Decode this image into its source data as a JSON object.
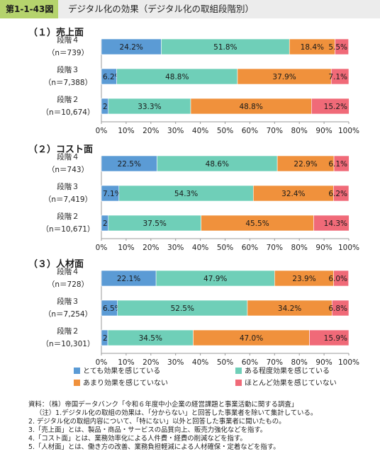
{
  "header": {
    "figure_number": "第1-1-43図",
    "title": "デジタル化の効果（デジタル化の取組段階別）"
  },
  "colors": {
    "header_accent": "#b5d36d",
    "very_effective": "#5b9bd5",
    "somewhat_effective": "#6fcfb8",
    "not_very_effective": "#f0913c",
    "not_effective": "#f06a78"
  },
  "chart_data": {
    "type": "bar",
    "orientation": "horizontal-stacked-100",
    "xlim": [
      0,
      100
    ],
    "xticks": [
      "0%",
      "10%",
      "20%",
      "30%",
      "40%",
      "50%",
      "60%",
      "70%",
      "80%",
      "90%",
      "100%"
    ],
    "legend_placement": "bottom",
    "series_names": [
      "とても効果を感じている",
      "ある程度効果を感じている",
      "あまり効果を感じていない",
      "ほとんど効果を感じていない"
    ],
    "panels": [
      {
        "title": "（１）売上面",
        "rows": [
          {
            "label": "段階４",
            "n": "（n＝739）",
            "values": [
              24.2,
              51.8,
              18.4,
              5.5
            ]
          },
          {
            "label": "段階３",
            "n": "（n＝7,388）",
            "values": [
              6.2,
              48.8,
              37.9,
              7.1
            ]
          },
          {
            "label": "段階２",
            "n": "（n＝10,674）",
            "values": [
              2.8,
              33.3,
              48.8,
              15.2
            ]
          }
        ]
      },
      {
        "title": "（２）コスト面",
        "rows": [
          {
            "label": "段階４",
            "n": "（n＝743）",
            "values": [
              22.5,
              48.6,
              22.9,
              6.1
            ]
          },
          {
            "label": "段階３",
            "n": "（n＝7,419）",
            "values": [
              7.1,
              54.3,
              32.4,
              6.2
            ]
          },
          {
            "label": "段階２",
            "n": "（n＝10,671）",
            "values": [
              2.8,
              37.5,
              45.5,
              14.3
            ]
          }
        ]
      },
      {
        "title": "（３）人材面",
        "rows": [
          {
            "label": "段階４",
            "n": "（n＝728）",
            "values": [
              22.1,
              47.9,
              23.9,
              6.0
            ]
          },
          {
            "label": "段階３",
            "n": "（n＝7,254）",
            "values": [
              6.5,
              52.5,
              34.2,
              6.8
            ]
          },
          {
            "label": "段階２",
            "n": "（n＝10,301）",
            "values": [
              2.6,
              34.5,
              47.0,
              15.9
            ]
          }
        ]
      }
    ]
  },
  "notes": {
    "source": "資料：（株）帝国データバンク「令和６年度中小企業の経営課題と事業活動に関する調査」",
    "items": [
      "（注）1.デジタル化の取組の効果は、「分からない」と回答した事業者を除いて集計している。",
      "2. デジタル化の取組内容について、「特にない」以外と回答した事業者に聞いたもの。",
      "3.「売上面」とは、製品・商品・サービスの品質向上、販売力強化などを指す。",
      "4.「コスト面」とは、業務効率化による人件費・経費の削減などを指す。",
      "5.「人材面」とは、働き方の改善、業務負担軽減による人材確保・定着などを指す。"
    ]
  }
}
